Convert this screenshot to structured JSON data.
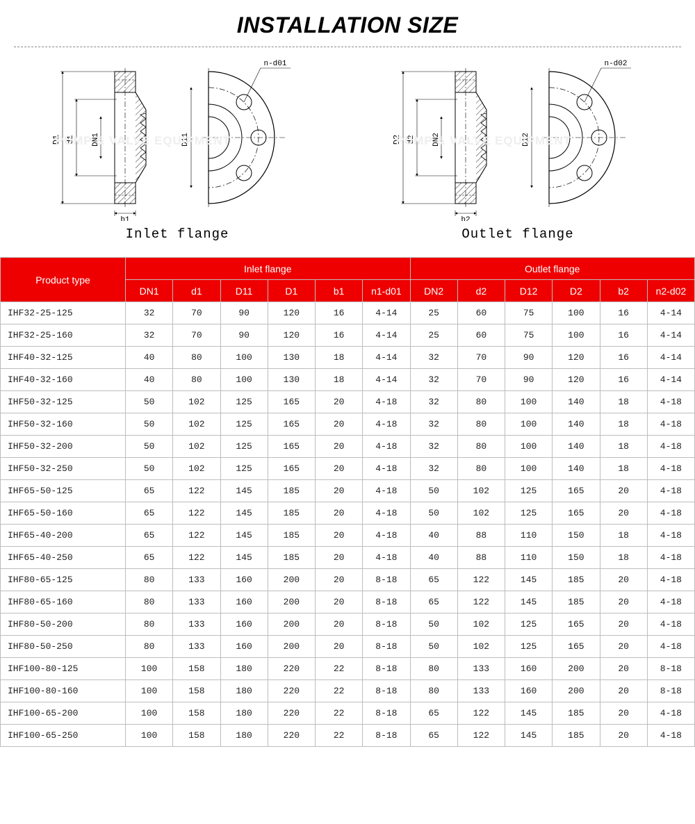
{
  "title": "INSTALLATION SIZE",
  "diagrams": {
    "inlet": {
      "caption": "Inlet flange",
      "nd_label": "n-d01",
      "d_outer": "D1",
      "d_small": "d1",
      "dn": "DN1",
      "d_bolt": "D11",
      "b": "b1"
    },
    "outlet": {
      "caption": "Outlet flange",
      "nd_label": "n-d02",
      "d_outer": "D2",
      "d_small": "d2",
      "dn": "DN2",
      "d_bolt": "D12",
      "b": "b2"
    }
  },
  "watermark": "PUMP & VALVE EQUIPMENT",
  "table": {
    "header_color": "#ee0000",
    "header_text_color": "#ffffff",
    "border_color": "#bdbdbd",
    "product_type_label": "Product type",
    "groups": [
      "Inlet flange",
      "Outlet flange"
    ],
    "columns": [
      "DN1",
      "d1",
      "D11",
      "D1",
      "b1",
      "n1-d01",
      "DN2",
      "d2",
      "D12",
      "D2",
      "b2",
      "n2-d02"
    ],
    "rows": [
      [
        "IHF32-25-125",
        "32",
        "70",
        "90",
        "120",
        "16",
        "4-14",
        "25",
        "60",
        "75",
        "100",
        "16",
        "4-14"
      ],
      [
        "IHF32-25-160",
        "32",
        "70",
        "90",
        "120",
        "16",
        "4-14",
        "25",
        "60",
        "75",
        "100",
        "16",
        "4-14"
      ],
      [
        "IHF40-32-125",
        "40",
        "80",
        "100",
        "130",
        "18",
        "4-14",
        "32",
        "70",
        "90",
        "120",
        "16",
        "4-14"
      ],
      [
        "IHF40-32-160",
        "40",
        "80",
        "100",
        "130",
        "18",
        "4-14",
        "32",
        "70",
        "90",
        "120",
        "16",
        "4-14"
      ],
      [
        "IHF50-32-125",
        "50",
        "102",
        "125",
        "165",
        "20",
        "4-18",
        "32",
        "80",
        "100",
        "140",
        "18",
        "4-18"
      ],
      [
        "IHF50-32-160",
        "50",
        "102",
        "125",
        "165",
        "20",
        "4-18",
        "32",
        "80",
        "100",
        "140",
        "18",
        "4-18"
      ],
      [
        "IHF50-32-200",
        "50",
        "102",
        "125",
        "165",
        "20",
        "4-18",
        "32",
        "80",
        "100",
        "140",
        "18",
        "4-18"
      ],
      [
        "IHF50-32-250",
        "50",
        "102",
        "125",
        "165",
        "20",
        "4-18",
        "32",
        "80",
        "100",
        "140",
        "18",
        "4-18"
      ],
      [
        "IHF65-50-125",
        "65",
        "122",
        "145",
        "185",
        "20",
        "4-18",
        "50",
        "102",
        "125",
        "165",
        "20",
        "4-18"
      ],
      [
        "IHF65-50-160",
        "65",
        "122",
        "145",
        "185",
        "20",
        "4-18",
        "50",
        "102",
        "125",
        "165",
        "20",
        "4-18"
      ],
      [
        "IHF65-40-200",
        "65",
        "122",
        "145",
        "185",
        "20",
        "4-18",
        "40",
        "88",
        "110",
        "150",
        "18",
        "4-18"
      ],
      [
        "IHF65-40-250",
        "65",
        "122",
        "145",
        "185",
        "20",
        "4-18",
        "40",
        "88",
        "110",
        "150",
        "18",
        "4-18"
      ],
      [
        "IHF80-65-125",
        "80",
        "133",
        "160",
        "200",
        "20",
        "8-18",
        "65",
        "122",
        "145",
        "185",
        "20",
        "4-18"
      ],
      [
        "IHF80-65-160",
        "80",
        "133",
        "160",
        "200",
        "20",
        "8-18",
        "65",
        "122",
        "145",
        "185",
        "20",
        "4-18"
      ],
      [
        "IHF80-50-200",
        "80",
        "133",
        "160",
        "200",
        "20",
        "8-18",
        "50",
        "102",
        "125",
        "165",
        "20",
        "4-18"
      ],
      [
        "IHF80-50-250",
        "80",
        "133",
        "160",
        "200",
        "20",
        "8-18",
        "50",
        "102",
        "125",
        "165",
        "20",
        "4-18"
      ],
      [
        "IHF100-80-125",
        "100",
        "158",
        "180",
        "220",
        "22",
        "8-18",
        "80",
        "133",
        "160",
        "200",
        "20",
        "8-18"
      ],
      [
        "IHF100-80-160",
        "100",
        "158",
        "180",
        "220",
        "22",
        "8-18",
        "80",
        "133",
        "160",
        "200",
        "20",
        "8-18"
      ],
      [
        "IHF100-65-200",
        "100",
        "158",
        "180",
        "220",
        "22",
        "8-18",
        "65",
        "122",
        "145",
        "185",
        "20",
        "4-18"
      ],
      [
        "IHF100-65-250",
        "100",
        "158",
        "180",
        "220",
        "22",
        "8-18",
        "65",
        "122",
        "145",
        "185",
        "20",
        "4-18"
      ]
    ]
  }
}
